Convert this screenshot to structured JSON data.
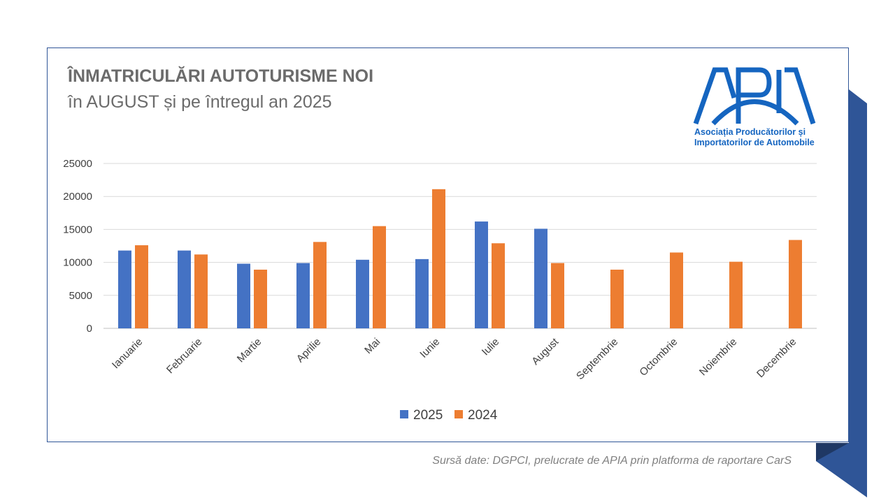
{
  "chart_data": {
    "type": "bar",
    "title": "ÎNMATRICULĂRI AUTOTURISME NOI",
    "subtitle": "în AUGUST și pe întregul an 2025",
    "categories": [
      "Ianuarie",
      "Februarie",
      "Martie",
      "Aprilie",
      "Mai",
      "Iunie",
      "Iulie",
      "August",
      "Septembrie",
      "Octombrie",
      "Noiembrie",
      "Decembrie"
    ],
    "series": [
      {
        "name": "2025",
        "color": "#4472c4",
        "values": [
          11800,
          11800,
          9800,
          9900,
          10400,
          10500,
          16200,
          15100,
          null,
          null,
          null,
          null
        ]
      },
      {
        "name": "2024",
        "color": "#ed7d31",
        "values": [
          12600,
          11200,
          8900,
          13100,
          15500,
          21100,
          12900,
          9900,
          8900,
          11500,
          10100,
          13400
        ]
      }
    ],
    "y_ticks": [
      "0",
      "5000",
      "10000",
      "15000",
      "20000",
      "25000"
    ],
    "ylim": [
      0,
      25000
    ],
    "grid": true,
    "legend_position": "bottom"
  },
  "logo": {
    "letters": "APIA",
    "line1": "Asociația Producătorilor și",
    "line2": "Importatorilor de Automobile",
    "color": "#1565c0"
  },
  "source": "Sursă date: DGPCI, prelucrate de APIA prin platforma de raportare CarS"
}
